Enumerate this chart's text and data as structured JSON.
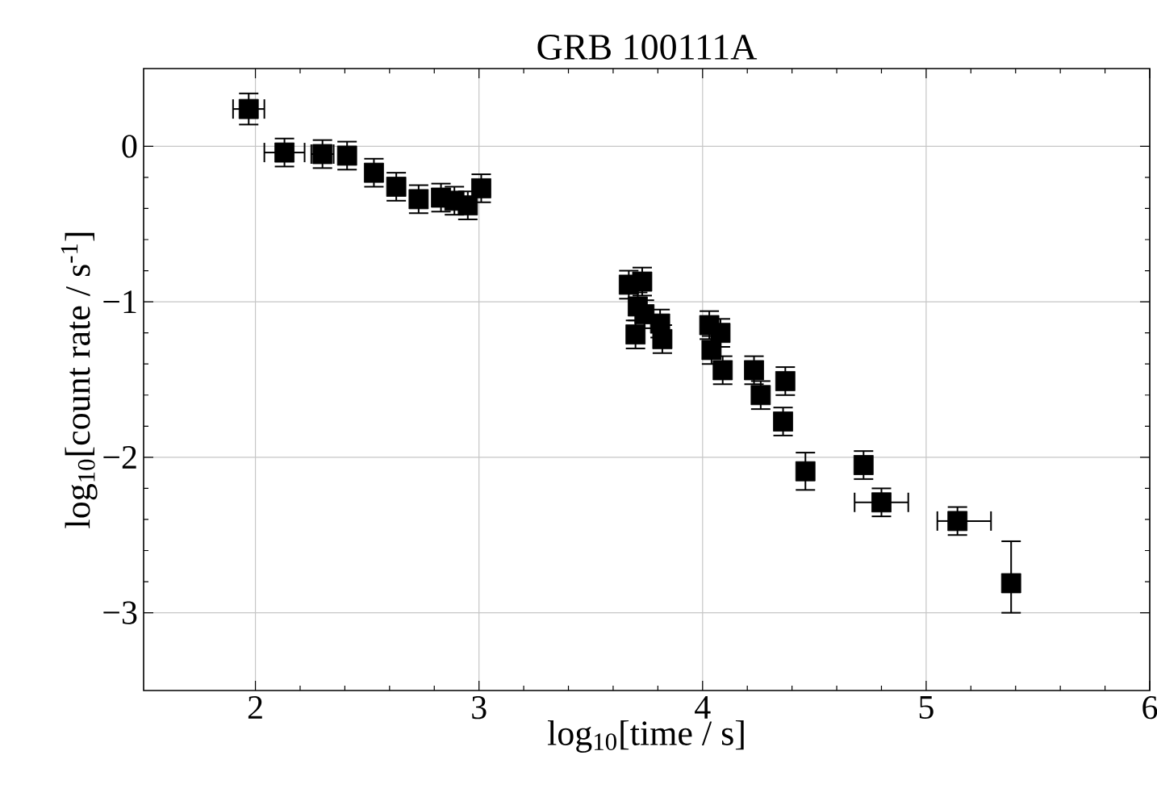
{
  "chart_data": {
    "type": "scatter",
    "title": "GRB 100111A",
    "xlabel": "log$_{10}$[time / s]",
    "ylabel": "log$_{10}$[count rate / s$^{-1}$]",
    "series": [
      {
        "color": "#000000",
        "x": [
          1.97,
          2.13,
          2.3,
          2.41,
          2.53,
          2.63,
          2.73,
          2.83,
          2.89,
          2.95,
          3.01,
          3.67,
          3.73,
          3.71,
          3.74,
          3.7,
          3.81,
          3.82,
          4.03,
          4.08,
          4.04,
          4.09,
          4.23,
          4.26,
          4.37,
          4.36,
          4.46,
          4.72,
          4.8,
          5.14,
          5.38
        ],
        "values": [
          0.24,
          -0.04,
          -0.05,
          -0.06,
          -0.17,
          -0.26,
          -0.34,
          -0.33,
          -0.35,
          -0.38,
          -0.27,
          -0.89,
          -0.87,
          -1.03,
          -1.08,
          -1.21,
          -1.14,
          -1.24,
          -1.15,
          -1.2,
          -1.31,
          -1.44,
          -1.44,
          -1.6,
          -1.51,
          -1.77,
          -2.09,
          -2.05,
          -2.29,
          -2.41,
          -2.81
        ],
        "errors": [
          0.1,
          0.09,
          0.09,
          0.09,
          0.09,
          0.09,
          0.09,
          0.09,
          0.09,
          0.09,
          0.09,
          0.09,
          0.09,
          0.09,
          0.09,
          0.09,
          0.09,
          0.09,
          0.09,
          0.09,
          0.09,
          0.09,
          0.09,
          0.09,
          0.09,
          0.09,
          0.12,
          0.09,
          0.09,
          0.09,
          [
            -3.0,
            -2.54
          ]
        ],
        "xerrors": [
          0.07,
          0.09,
          0.05,
          null,
          null,
          null,
          null,
          null,
          null,
          null,
          null,
          null,
          null,
          null,
          null,
          null,
          null,
          null,
          null,
          null,
          null,
          null,
          null,
          null,
          null,
          null,
          null,
          null,
          0.12,
          [
            5.05,
            5.29
          ],
          null
        ]
      }
    ],
    "marker": "square",
    "grid": true,
    "xlim": [
      1.5,
      6
    ],
    "ylim": [
      -3.5,
      0.5
    ],
    "xticks": [
      2,
      3,
      4,
      5,
      6
    ],
    "yticks": [
      {
        "value": 0,
        "label": "0"
      },
      {
        "value": -1,
        "label": "−1"
      },
      {
        "value": -2,
        "label": "−2"
      },
      {
        "value": -3,
        "label": "−3"
      }
    ]
  }
}
